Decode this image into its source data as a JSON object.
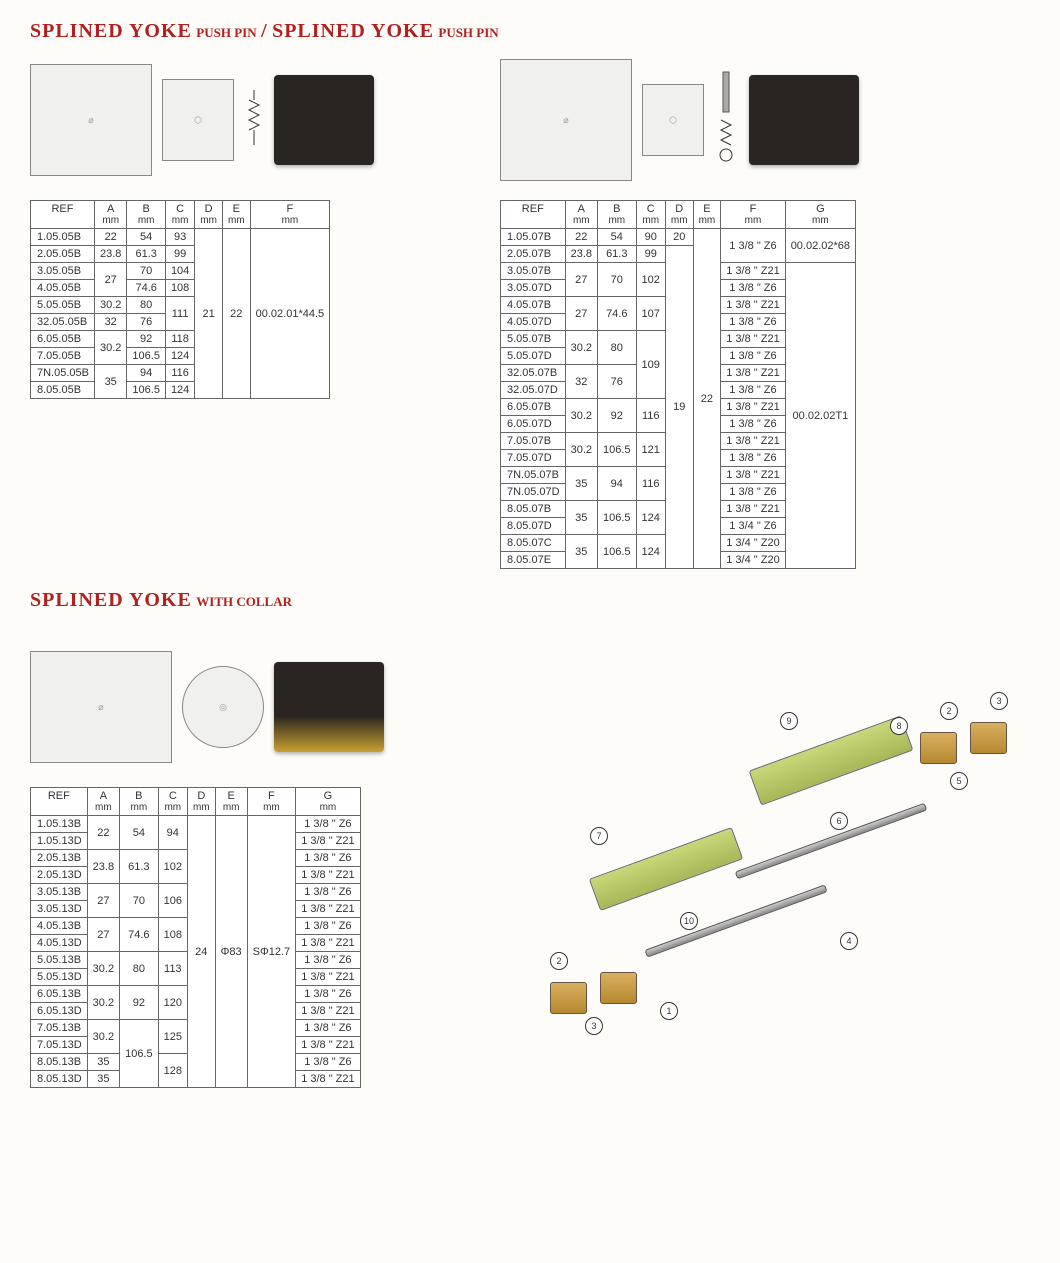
{
  "titles": {
    "t1_main": "SPLINED YOKE",
    "t1_sub": "PUSH PIN",
    "slash": "/",
    "t2_main": "SPLINED YOKE",
    "t2_sub": "PUSH PIN",
    "t3_main": "SPLINED YOKE",
    "t3_sub": "WITH COLLAR"
  },
  "table1": {
    "headers": [
      "REF",
      "A",
      "B",
      "C",
      "D",
      "E",
      "F"
    ],
    "units": [
      "",
      "mm",
      "mm",
      "mm",
      "mm",
      "mm",
      "mm"
    ],
    "rows": [
      {
        "ref": "1.05.05B",
        "a": "22",
        "b": "54",
        "c": "93"
      },
      {
        "ref": "2.05.05B",
        "a": "23.8",
        "b": "61.3",
        "c": "99"
      },
      {
        "ref": "3.05.05B",
        "a": "27",
        "b": "70",
        "c": "104",
        "a_span": 2
      },
      {
        "ref": "4.05.05B",
        "b": "74.6",
        "c": "108"
      },
      {
        "ref": "5.05.05B",
        "a": "30.2",
        "b": "80",
        "c": "111",
        "c_span": 2
      },
      {
        "ref": "32.05.05B",
        "a": "32",
        "b": "76"
      },
      {
        "ref": "6.05.05B",
        "a": "30.2",
        "b": "92",
        "c": "118",
        "a_span": 2
      },
      {
        "ref": "7.05.05B",
        "b": "106.5",
        "c": "124"
      },
      {
        "ref": "7N.05.05B",
        "a": "35",
        "b": "94",
        "c": "116",
        "a_span": 2
      },
      {
        "ref": "8.05.05B",
        "b": "106.5",
        "c": "124"
      }
    ],
    "d": "21",
    "e": "22",
    "f": "00.02.01*44.5"
  },
  "table2": {
    "headers": [
      "REF",
      "A",
      "B",
      "C",
      "D",
      "E",
      "F",
      "G"
    ],
    "units": [
      "",
      "mm",
      "mm",
      "mm",
      "mm",
      "mm",
      "mm",
      "mm"
    ],
    "g_top": "00.02.02*68",
    "g_rest": "00.02.02T1",
    "f_top": "1 3/8 \" Z6",
    "d_top": "20",
    "d_rest": "19",
    "e_all": "22",
    "rows": [
      {
        "ref": "1.05.07B",
        "a": "22",
        "b": "54",
        "c": "90"
      },
      {
        "ref": "2.05.07B",
        "a": "23.8",
        "b": "61.3",
        "c": "99"
      },
      {
        "ref": "3.05.07B",
        "a": "27",
        "b": "70",
        "c": "102",
        "f": "1 3/8 \" Z21",
        "a_span": 2,
        "b_span": 2,
        "c_span": 2
      },
      {
        "ref": "3.05.07D",
        "f": "1 3/8 \" Z6"
      },
      {
        "ref": "4.05.07B",
        "a": "27",
        "b": "74.6",
        "c": "107",
        "f": "1 3/8 \" Z21",
        "a_span": 2,
        "b_span": 2,
        "c_span": 2
      },
      {
        "ref": "4.05.07D",
        "f": "1 3/8 \" Z6"
      },
      {
        "ref": "5.05.07B",
        "a": "30.2",
        "b": "80",
        "c": "109",
        "f": "1 3/8 \" Z21",
        "a_span": 2,
        "b_span": 2,
        "c_span": 4
      },
      {
        "ref": "5.05.07D",
        "f": "1 3/8 \"  Z6"
      },
      {
        "ref": "32.05.07B",
        "a": "32",
        "b": "76",
        "f": "1 3/8 \" Z21",
        "a_span": 2,
        "b_span": 2
      },
      {
        "ref": "32.05.07D",
        "f": "1 3/8 \"  Z6"
      },
      {
        "ref": "6.05.07B",
        "a": "30.2",
        "b": "92",
        "c": "116",
        "f": "1 3/8 \" Z21",
        "a_span": 2,
        "b_span": 2,
        "c_span": 2
      },
      {
        "ref": "6.05.07D",
        "f": "1 3/8 \" Z6"
      },
      {
        "ref": "7.05.07B",
        "a": "30.2",
        "b": "106.5",
        "c": "121",
        "f": "1 3/8 \" Z21",
        "a_span": 2,
        "b_span": 2,
        "c_span": 2
      },
      {
        "ref": "7.05.07D",
        "f": "1 3/8 \"  Z6"
      },
      {
        "ref": "7N.05.07B",
        "a": "35",
        "b": "94",
        "c": "116",
        "f": "1 3/8 \" Z21",
        "a_span": 2,
        "b_span": 2,
        "c_span": 2
      },
      {
        "ref": "7N.05.07D",
        "f": "1 3/8 \" Z6"
      },
      {
        "ref": "8.05.07B",
        "a": "35",
        "b": "106.5",
        "c": "124",
        "f": "1 3/8 \" Z21",
        "a_span": 2,
        "b_span": 2,
        "c_span": 2
      },
      {
        "ref": "8.05.07D",
        "f": "1 3/4 \" Z6"
      },
      {
        "ref": "8.05.07C",
        "a": "35",
        "b": "106.5",
        "c": "124",
        "f": "1 3/4 \" Z20",
        "a_span": 2,
        "b_span": 2,
        "c_span": 2
      },
      {
        "ref": "8.05.07E",
        "f": "1 3/4 \" Z20"
      }
    ]
  },
  "table3": {
    "headers": [
      "REF",
      "A",
      "B",
      "C",
      "D",
      "E",
      "F",
      "G"
    ],
    "units": [
      "",
      "mm",
      "mm",
      "mm",
      "mm",
      "mm",
      "mm",
      "mm"
    ],
    "d": "24",
    "e": "Φ83",
    "f": "SΦ12.7",
    "rows": [
      {
        "ref": "1.05.13B",
        "a": "22",
        "b": "54",
        "c": "94",
        "g": "1 3/8 \" Z6",
        "a_span": 2,
        "b_span": 2,
        "c_span": 2
      },
      {
        "ref": "1.05.13D",
        "g": "1 3/8 \" Z21"
      },
      {
        "ref": "2.05.13B",
        "a": "23.8",
        "b": "61.3",
        "c": "102",
        "g": "1 3/8 \" Z6",
        "a_span": 2,
        "b_span": 2,
        "c_span": 2
      },
      {
        "ref": "2.05.13D",
        "g": "1 3/8 \" Z21"
      },
      {
        "ref": "3.05.13B",
        "a": "27",
        "b": "70",
        "c": "106",
        "g": "1 3/8 \" Z6",
        "a_span": 2,
        "b_span": 2,
        "c_span": 2
      },
      {
        "ref": "3.05.13D",
        "g": "1 3/8 \" Z21"
      },
      {
        "ref": "4.05.13B",
        "a": "27",
        "b": "74.6",
        "c": "108",
        "g": "1 3/8 \" Z6",
        "a_span": 2,
        "b_span": 2,
        "c_span": 2
      },
      {
        "ref": "4.05.13D",
        "g": "1 3/8 \" Z21"
      },
      {
        "ref": "5.05.13B",
        "a": "30.2",
        "b": "80",
        "c": "113",
        "g": "1 3/8 \" Z6",
        "a_span": 2,
        "b_span": 2,
        "c_span": 2
      },
      {
        "ref": "5.05.13D",
        "g": "1 3/8 \" Z21"
      },
      {
        "ref": "6.05.13B",
        "a": "30.2",
        "b": "92",
        "c": "120",
        "g": "1 3/8 \" Z6",
        "a_span": 2,
        "b_span": 2,
        "c_span": 2
      },
      {
        "ref": "6.05.13D",
        "g": "1 3/8 \" Z21"
      },
      {
        "ref": "7.05.13B",
        "a": "30.2",
        "b": "106.5",
        "c": "125",
        "g": "1 3/8 \" Z6",
        "a_span": 2,
        "b_span": 4,
        "c_span": 2
      },
      {
        "ref": "7.05.13D",
        "g": "1 3/8 \" Z21"
      },
      {
        "ref": "8.05.13B",
        "a": "35",
        "c": "128",
        "g": "1 3/8 \" Z6",
        "c_span": 2
      },
      {
        "ref": "8.05.13D",
        "a": "35",
        "g": "1 3/8 \" Z21"
      }
    ]
  },
  "callouts": [
    "1",
    "2",
    "3",
    "4",
    "5",
    "6",
    "7",
    "8",
    "9",
    "10"
  ]
}
